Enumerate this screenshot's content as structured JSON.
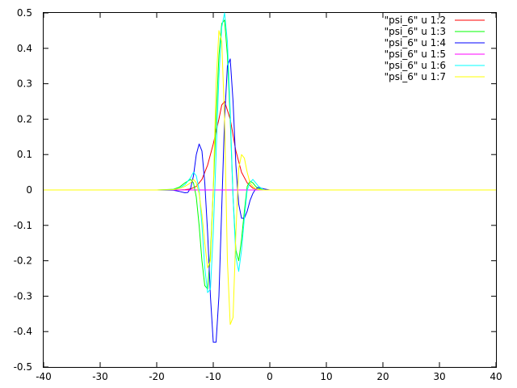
{
  "chart_data": {
    "type": "line",
    "xlim": [
      -40,
      40
    ],
    "ylim": [
      -0.5,
      0.5
    ],
    "x_ticks": [
      -40,
      -30,
      -20,
      -10,
      0,
      10,
      20,
      30,
      40
    ],
    "y_ticks": [
      -0.5,
      -0.4,
      -0.3,
      -0.2,
      -0.1,
      0,
      0.1,
      0.2,
      0.3,
      0.4,
      0.5
    ],
    "x_tick_labels": [
      "-40",
      "-30",
      "-20",
      "-10",
      "0",
      "10",
      "20",
      "30",
      "40"
    ],
    "y_tick_labels": [
      "-0.5",
      "-0.4",
      "-0.3",
      "-0.2",
      "-0.1",
      "0",
      "0.1",
      "0.2",
      "0.3",
      "0.4",
      "0.5"
    ],
    "grid": false,
    "legend_position": "top-right",
    "series": [
      {
        "name": "\"psi_6\" u 1:2",
        "color": "#ff0000",
        "x": [
          -40,
          -20,
          -16,
          -15,
          -14,
          -13,
          -12,
          -11,
          -10,
          -9,
          -8.5,
          -8,
          -7,
          -6,
          -5,
          -4,
          -3,
          -2,
          -1,
          0,
          20,
          40
        ],
        "y": [
          0,
          0,
          0,
          0.001,
          0.003,
          0.01,
          0.03,
          0.07,
          0.13,
          0.2,
          0.24,
          0.25,
          0.2,
          0.11,
          0.05,
          0.02,
          0.005,
          0.001,
          0,
          0,
          0,
          0
        ]
      },
      {
        "name": "\"psi_6\" u 1:3",
        "color": "#00ff00",
        "x": [
          -40,
          -20,
          -17,
          -16,
          -15,
          -14,
          -13.5,
          -13,
          -12.5,
          -12,
          -11.5,
          -11,
          -10.5,
          -10,
          -9.5,
          -9,
          -8.5,
          -8,
          -7.5,
          -7,
          -6.5,
          -6,
          -5.5,
          -5,
          -4.5,
          -4,
          -3.5,
          -3,
          -2.5,
          -2,
          -1,
          0,
          20,
          40
        ],
        "y": [
          0,
          0,
          0.002,
          0.008,
          0.02,
          0.03,
          0.02,
          -0.02,
          -0.1,
          -0.2,
          -0.27,
          -0.28,
          -0.18,
          0,
          0.2,
          0.38,
          0.47,
          0.48,
          0.38,
          0.2,
          -0.02,
          -0.17,
          -0.2,
          -0.14,
          -0.06,
          0.01,
          0.025,
          0.02,
          0.01,
          0.004,
          0,
          0,
          0,
          0
        ]
      },
      {
        "name": "\"psi_6\" u 1:4",
        "color": "#0000ff",
        "x": [
          -40,
          -20,
          -17,
          -16,
          -15,
          -14.5,
          -14,
          -13.5,
          -13,
          -12.5,
          -12,
          -11.5,
          -11,
          -10.5,
          -10,
          -9.5,
          -9,
          -8.5,
          -8,
          -7.5,
          -7,
          -6.5,
          -6,
          -5.5,
          -5,
          -4.5,
          -4,
          -3.5,
          -3,
          -2.5,
          -2,
          -1,
          0,
          20,
          40
        ],
        "y": [
          0,
          0,
          -0.001,
          -0.004,
          -0.008,
          -0.007,
          0.005,
          0.04,
          0.1,
          0.13,
          0.11,
          0.02,
          -0.12,
          -0.3,
          -0.43,
          -0.43,
          -0.3,
          -0.05,
          0.2,
          0.35,
          0.37,
          0.25,
          0.07,
          -0.04,
          -0.08,
          -0.08,
          -0.06,
          -0.03,
          -0.01,
          0.003,
          0.007,
          0.003,
          0,
          0,
          0
        ]
      },
      {
        "name": "\"psi_6\" u 1:5",
        "color": "#ff00ff",
        "x": [
          -40,
          0,
          40
        ],
        "y": [
          0,
          0,
          0
        ]
      },
      {
        "name": "\"psi_6\" u 1:6",
        "color": "#00ffff",
        "x": [
          -40,
          -20,
          -17,
          -16,
          -15,
          -14,
          -13.5,
          -13,
          -12.5,
          -12,
          -11.5,
          -11,
          -10.5,
          -10,
          -9.5,
          -9,
          -8.5,
          -8,
          -7.5,
          -7,
          -6.5,
          -6,
          -5.5,
          -5,
          -4.5,
          -4,
          -3.5,
          -3,
          -2.5,
          -2,
          -1,
          0,
          20,
          40
        ],
        "y": [
          0,
          0,
          0.001,
          0.005,
          0.015,
          0.035,
          0.05,
          0.04,
          0,
          -0.1,
          -0.22,
          -0.29,
          -0.28,
          -0.12,
          0.1,
          0.32,
          0.46,
          0.5,
          0.42,
          0.22,
          -0.02,
          -0.19,
          -0.23,
          -0.17,
          -0.08,
          0,
          0.02,
          0.03,
          0.02,
          0.01,
          0,
          0,
          0,
          0
        ]
      },
      {
        "name": "\"psi_6\" u 1:7",
        "color": "#ffff00",
        "x": [
          -40,
          -20,
          -17,
          -16,
          -15,
          -14,
          -13.5,
          -13,
          -12.5,
          -12,
          -11.5,
          -11,
          -10.5,
          -10,
          -9.5,
          -9,
          -8.5,
          -8,
          -7.5,
          -7,
          -6.5,
          -6,
          -5.5,
          -5,
          -4.5,
          -4,
          -3.5,
          -3,
          -2.5,
          -2,
          -1,
          0,
          20,
          40
        ],
        "y": [
          0,
          0,
          0.001,
          0.004,
          0.01,
          0.02,
          0.03,
          0.02,
          -0.01,
          -0.07,
          -0.15,
          -0.22,
          -0.2,
          0,
          0.3,
          0.45,
          0.42,
          0.2,
          -0.2,
          -0.38,
          -0.36,
          -0.12,
          0.06,
          0.1,
          0.09,
          0.05,
          0.02,
          0.01,
          0.003,
          0.001,
          0,
          0,
          0,
          0
        ]
      }
    ]
  }
}
